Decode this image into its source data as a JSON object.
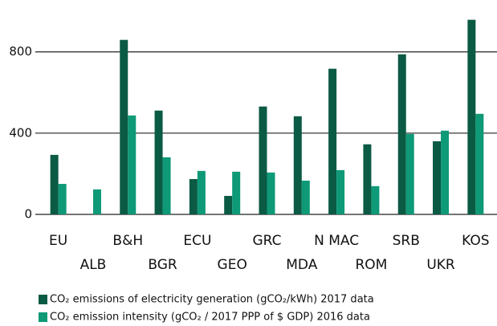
{
  "chart_data": {
    "type": "bar",
    "categories": [
      "EU",
      "ALB",
      "B&H",
      "BGR",
      "ECU",
      "GEO",
      "GRC",
      "MDA",
      "N MAC",
      "ROM",
      "SRB",
      "UKR",
      "KOS"
    ],
    "series": [
      {
        "name": "CO₂ emissions of electricity generation (gCO₂/kWh) 2017 data",
        "color": "#0b5a44",
        "values": [
          293,
          null,
          859,
          511,
          174,
          91,
          531,
          483,
          717,
          345,
          788,
          360,
          958
        ]
      },
      {
        "name": "CO₂ emission intensity (gCO₂ / 2017 PPP of $ GDP) 2016 data",
        "color": "#0e9977",
        "values": [
          150,
          123,
          487,
          281,
          214,
          210,
          206,
          166,
          218,
          139,
          396,
          412,
          495
        ]
      }
    ],
    "ylim": [
      0,
      1000
    ],
    "yticks": [
      0,
      400,
      800
    ],
    "grid": true
  }
}
